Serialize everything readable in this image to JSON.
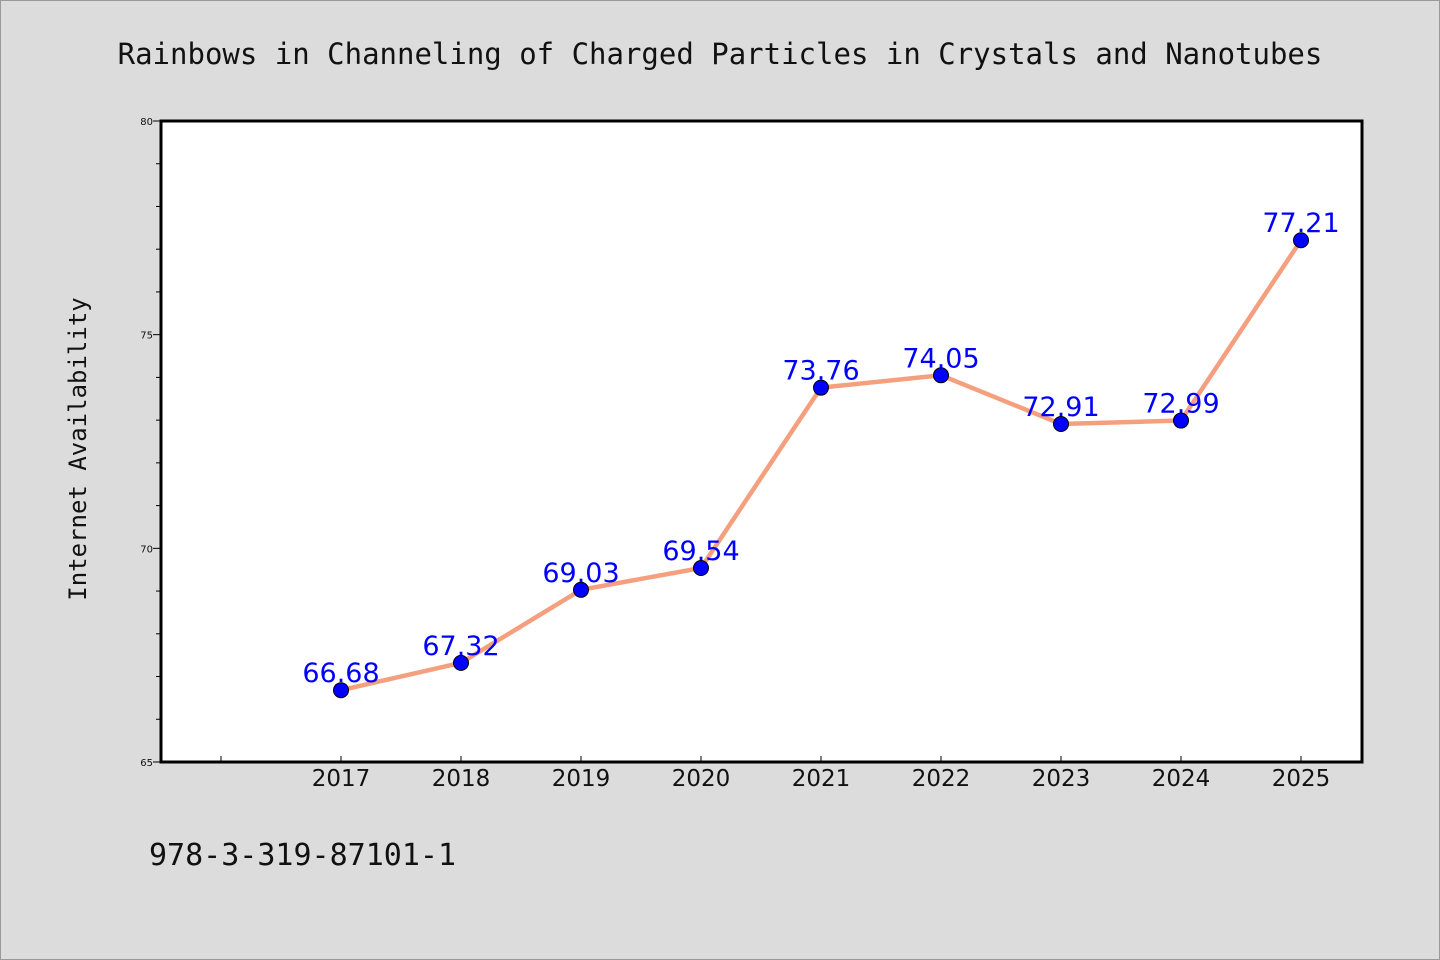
{
  "chart_data": {
    "type": "line",
    "title": "Rainbows in Channeling of Charged Particles in Crystals and Nanotubes",
    "xlabel": "",
    "ylabel": "Internet Availability",
    "categories": [
      "2017",
      "2018",
      "2019",
      "2020",
      "2021",
      "2022",
      "2023",
      "2024",
      "2025"
    ],
    "values": [
      66.68,
      67.32,
      69.03,
      69.54,
      73.76,
      74.05,
      72.91,
      72.99,
      77.21
    ],
    "data_labels": [
      "66.68",
      "67.32",
      "69.03",
      "69.54",
      "73.76",
      "74.05",
      "72.91",
      "72.99",
      "77.21"
    ],
    "ylim": [
      65,
      80
    ],
    "yticks": [
      "65",
      "70",
      "75",
      "80"
    ],
    "grid": false,
    "legend": "none",
    "colors": {
      "line": "#f4a07f",
      "marker": "#0000ff",
      "data_label": "#0000ff",
      "background": "#dcdcdc",
      "plot_background": "#ffffff"
    }
  },
  "footnote": "978-3-319-87101-1"
}
